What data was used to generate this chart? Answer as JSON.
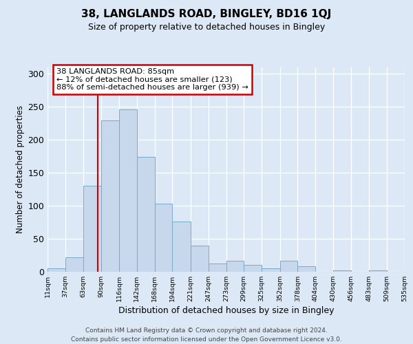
{
  "title": "38, LANGLANDS ROAD, BINGLEY, BD16 1QJ",
  "subtitle": "Size of property relative to detached houses in Bingley",
  "xlabel": "Distribution of detached houses by size in Bingley",
  "ylabel": "Number of detached properties",
  "bin_edges": [
    11,
    37,
    63,
    90,
    116,
    142,
    168,
    194,
    221,
    247,
    273,
    299,
    325,
    352,
    378,
    404,
    430,
    456,
    483,
    509,
    535
  ],
  "bar_heights": [
    5,
    22,
    130,
    229,
    246,
    174,
    103,
    76,
    40,
    13,
    17,
    10,
    5,
    17,
    8,
    0,
    2,
    0,
    2,
    0
  ],
  "bar_color": "#c8d8ec",
  "bar_edge_color": "#7aaac8",
  "bar_edge_width": 0.7,
  "vline_x": 85,
  "vline_color": "#cc0000",
  "annotation_text_line1": "38 LANGLANDS ROAD: 85sqm",
  "annotation_text_line2": "← 12% of detached houses are smaller (123)",
  "annotation_text_line3": "88% of semi-detached houses are larger (939) →",
  "annotation_box_edgecolor": "#cc0000",
  "annotation_fontsize": 8.2,
  "ylim": [
    0,
    310
  ],
  "yticks": [
    0,
    50,
    100,
    150,
    200,
    250,
    300
  ],
  "bg_color": "#dce8f5",
  "grid_color": "#ffffff",
  "footer_line1": "Contains HM Land Registry data © Crown copyright and database right 2024.",
  "footer_line2": "Contains public sector information licensed under the Open Government Licence v3.0.",
  "xtick_fontsize": 6.8,
  "ytick_fontsize": 9,
  "ylabel_fontsize": 8.5,
  "xlabel_fontsize": 9,
  "title_fontsize": 11,
  "subtitle_fontsize": 9
}
